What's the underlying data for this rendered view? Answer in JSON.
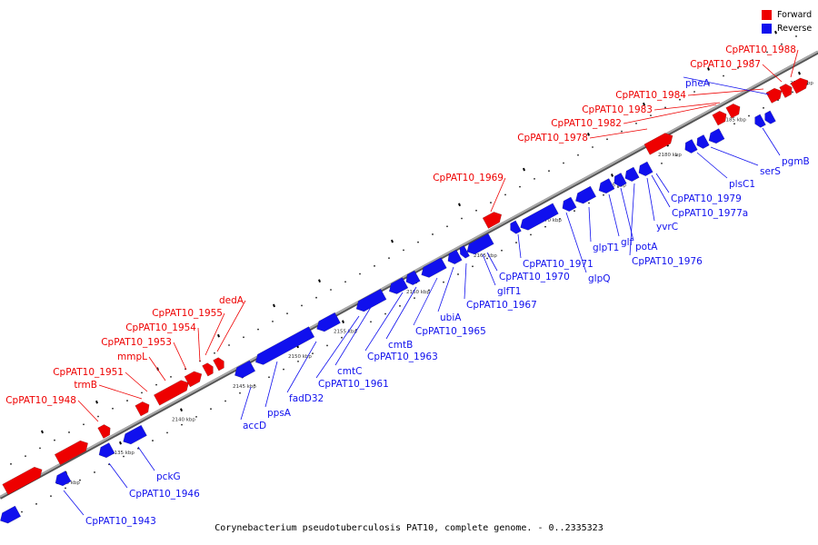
{
  "title": "Corynebacterium pseudotuberculosis PAT10, complete genome. - 0..2335323",
  "colors": {
    "forward": "#ee0000",
    "reverse": "#1010ee",
    "axis": "#777777"
  },
  "legend": [
    {
      "label": "Forward",
      "color": "#ee0000"
    },
    {
      "label": "Reverse",
      "color": "#1010ee"
    }
  ],
  "axis": {
    "ticks": [
      "2130 kbp",
      "2135 kbp",
      "2140 kbp",
      "2145 kbp",
      "2150 kbp",
      "2155 kbp",
      "2160 kbp",
      "2165 kbp",
      "2170 kbp",
      "2175 kbp",
      "2180 kbp",
      "2185 kbp",
      "2190 kbp"
    ]
  },
  "forward_labels": [
    "CpPAT10_1948",
    "trmB",
    "CpPAT10_1951",
    "mmpL",
    "CpPAT10_1953",
    "CpPAT10_1954",
    "CpPAT10_1955",
    "dedA",
    "CpPAT10_1969",
    "CpPAT10_1978",
    "CpPAT10_1982",
    "CpPAT10_1983",
    "CpPAT10_1984",
    "CpPAT10_1987",
    "CpPAT10_1988"
  ],
  "reverse_labels": [
    "CpPAT10_1943",
    "CpPAT10_1946",
    "pckG",
    "accD",
    "ppsA",
    "fadD32",
    "CpPAT10_1961",
    "cmtC",
    "CpPAT10_1963",
    "cmtB",
    "CpPAT10_1965",
    "ubiA",
    "CpPAT10_1967",
    "glfT1",
    "CpPAT10_1970",
    "CpPAT10_1971",
    "glpQ",
    "glpT1",
    "glf",
    "potA",
    "CpPAT10_1976",
    "yvrC",
    "CpPAT10_1977a",
    "CpPAT10_1979",
    "plsC1",
    "serS",
    "pgmB",
    "pheA"
  ]
}
